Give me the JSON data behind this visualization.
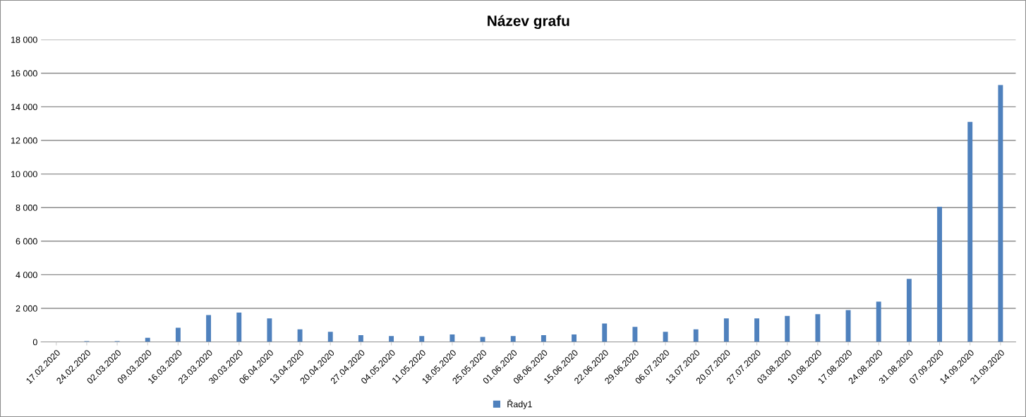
{
  "chart_data": {
    "type": "bar",
    "title": "Název grafu",
    "categories": [
      "17.02.2020",
      "24.02.2020",
      "02.03.2020",
      "09.03.2020",
      "16.03.2020",
      "23.03.2020",
      "30.03.2020",
      "06.04.2020",
      "13.04.2020",
      "20.04.2020",
      "27.04.2020",
      "04.05.2020",
      "11.05.2020",
      "18.05.2020",
      "25.05.2020",
      "01.06.2020",
      "08.06.2020",
      "15.06.2020",
      "22.06.2020",
      "29.06.2020",
      "06.07.2020",
      "13.07.2020",
      "20.07.2020",
      "27.07.2020",
      "03.08.2020",
      "10.08.2020",
      "17.08.2020",
      "24.08.2020",
      "31.08.2020",
      "07.09.2020",
      "14.09.2020",
      "21.09.2020"
    ],
    "series": [
      {
        "name": "Řady1",
        "color": "#4f81bd",
        "values": [
          0,
          50,
          50,
          250,
          850,
          1600,
          1750,
          1400,
          750,
          600,
          400,
          350,
          350,
          450,
          300,
          350,
          400,
          450,
          1100,
          900,
          600,
          750,
          1400,
          1400,
          1550,
          1650,
          1900,
          2400,
          3750,
          8050,
          13100,
          15300
        ]
      }
    ],
    "ylim": [
      0,
      18000
    ],
    "yticks": [
      0,
      {
        "value": 2000,
        "label": "2 000"
      },
      {
        "value": 4000,
        "label": "4 000"
      },
      {
        "value": 6000,
        "label": "6 000"
      },
      {
        "value": 8000,
        "label": "8 000"
      },
      {
        "value": 10000,
        "label": "10 000"
      },
      {
        "value": 12000,
        "label": "12 000"
      },
      {
        "value": 14000,
        "label": "14 000"
      },
      {
        "value": 16000,
        "label": "16 000"
      },
      {
        "value": 18000,
        "label": "18 000"
      }
    ],
    "grid": "y",
    "legend": "bottom"
  }
}
